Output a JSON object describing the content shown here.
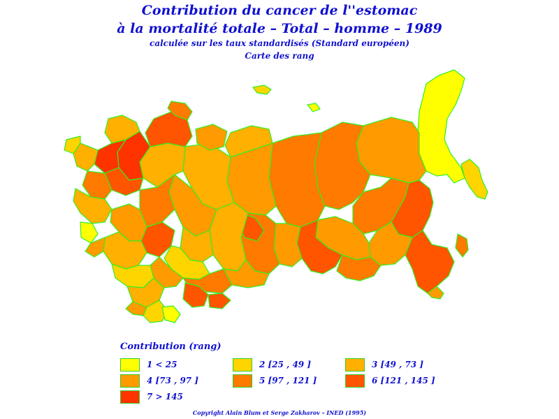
{
  "header": {
    "title_line1": "Contribution du cancer de l''estomac",
    "title_line2": "à la mortalité totale – Total – homme – 1989",
    "subtitle": "calculée sur les taux standardisés (Standard européen)",
    "map_type": "Carte des rang"
  },
  "legend": {
    "title": "Contribution (rang)",
    "items": [
      {
        "label": "1  <  25",
        "color": "#ffff00"
      },
      {
        "label": "2 [25 , 49 ]",
        "color": "#ffd500"
      },
      {
        "label": "3 [49 , 73 ]",
        "color": "#ffb000"
      },
      {
        "label": "4 [73 , 97 ]",
        "color": "#ff9a00"
      },
      {
        "label": "5 [97 , 121 ]",
        "color": "#ff7a00"
      },
      {
        "label": "6 [121 , 145 ]",
        "color": "#ff5500"
      },
      {
        "label": "7  >  145",
        "color": "#ff3300"
      }
    ]
  },
  "footer": {
    "copyright": "Copyright Alain Blum et Serge Zakharov – INED (1995)"
  }
}
